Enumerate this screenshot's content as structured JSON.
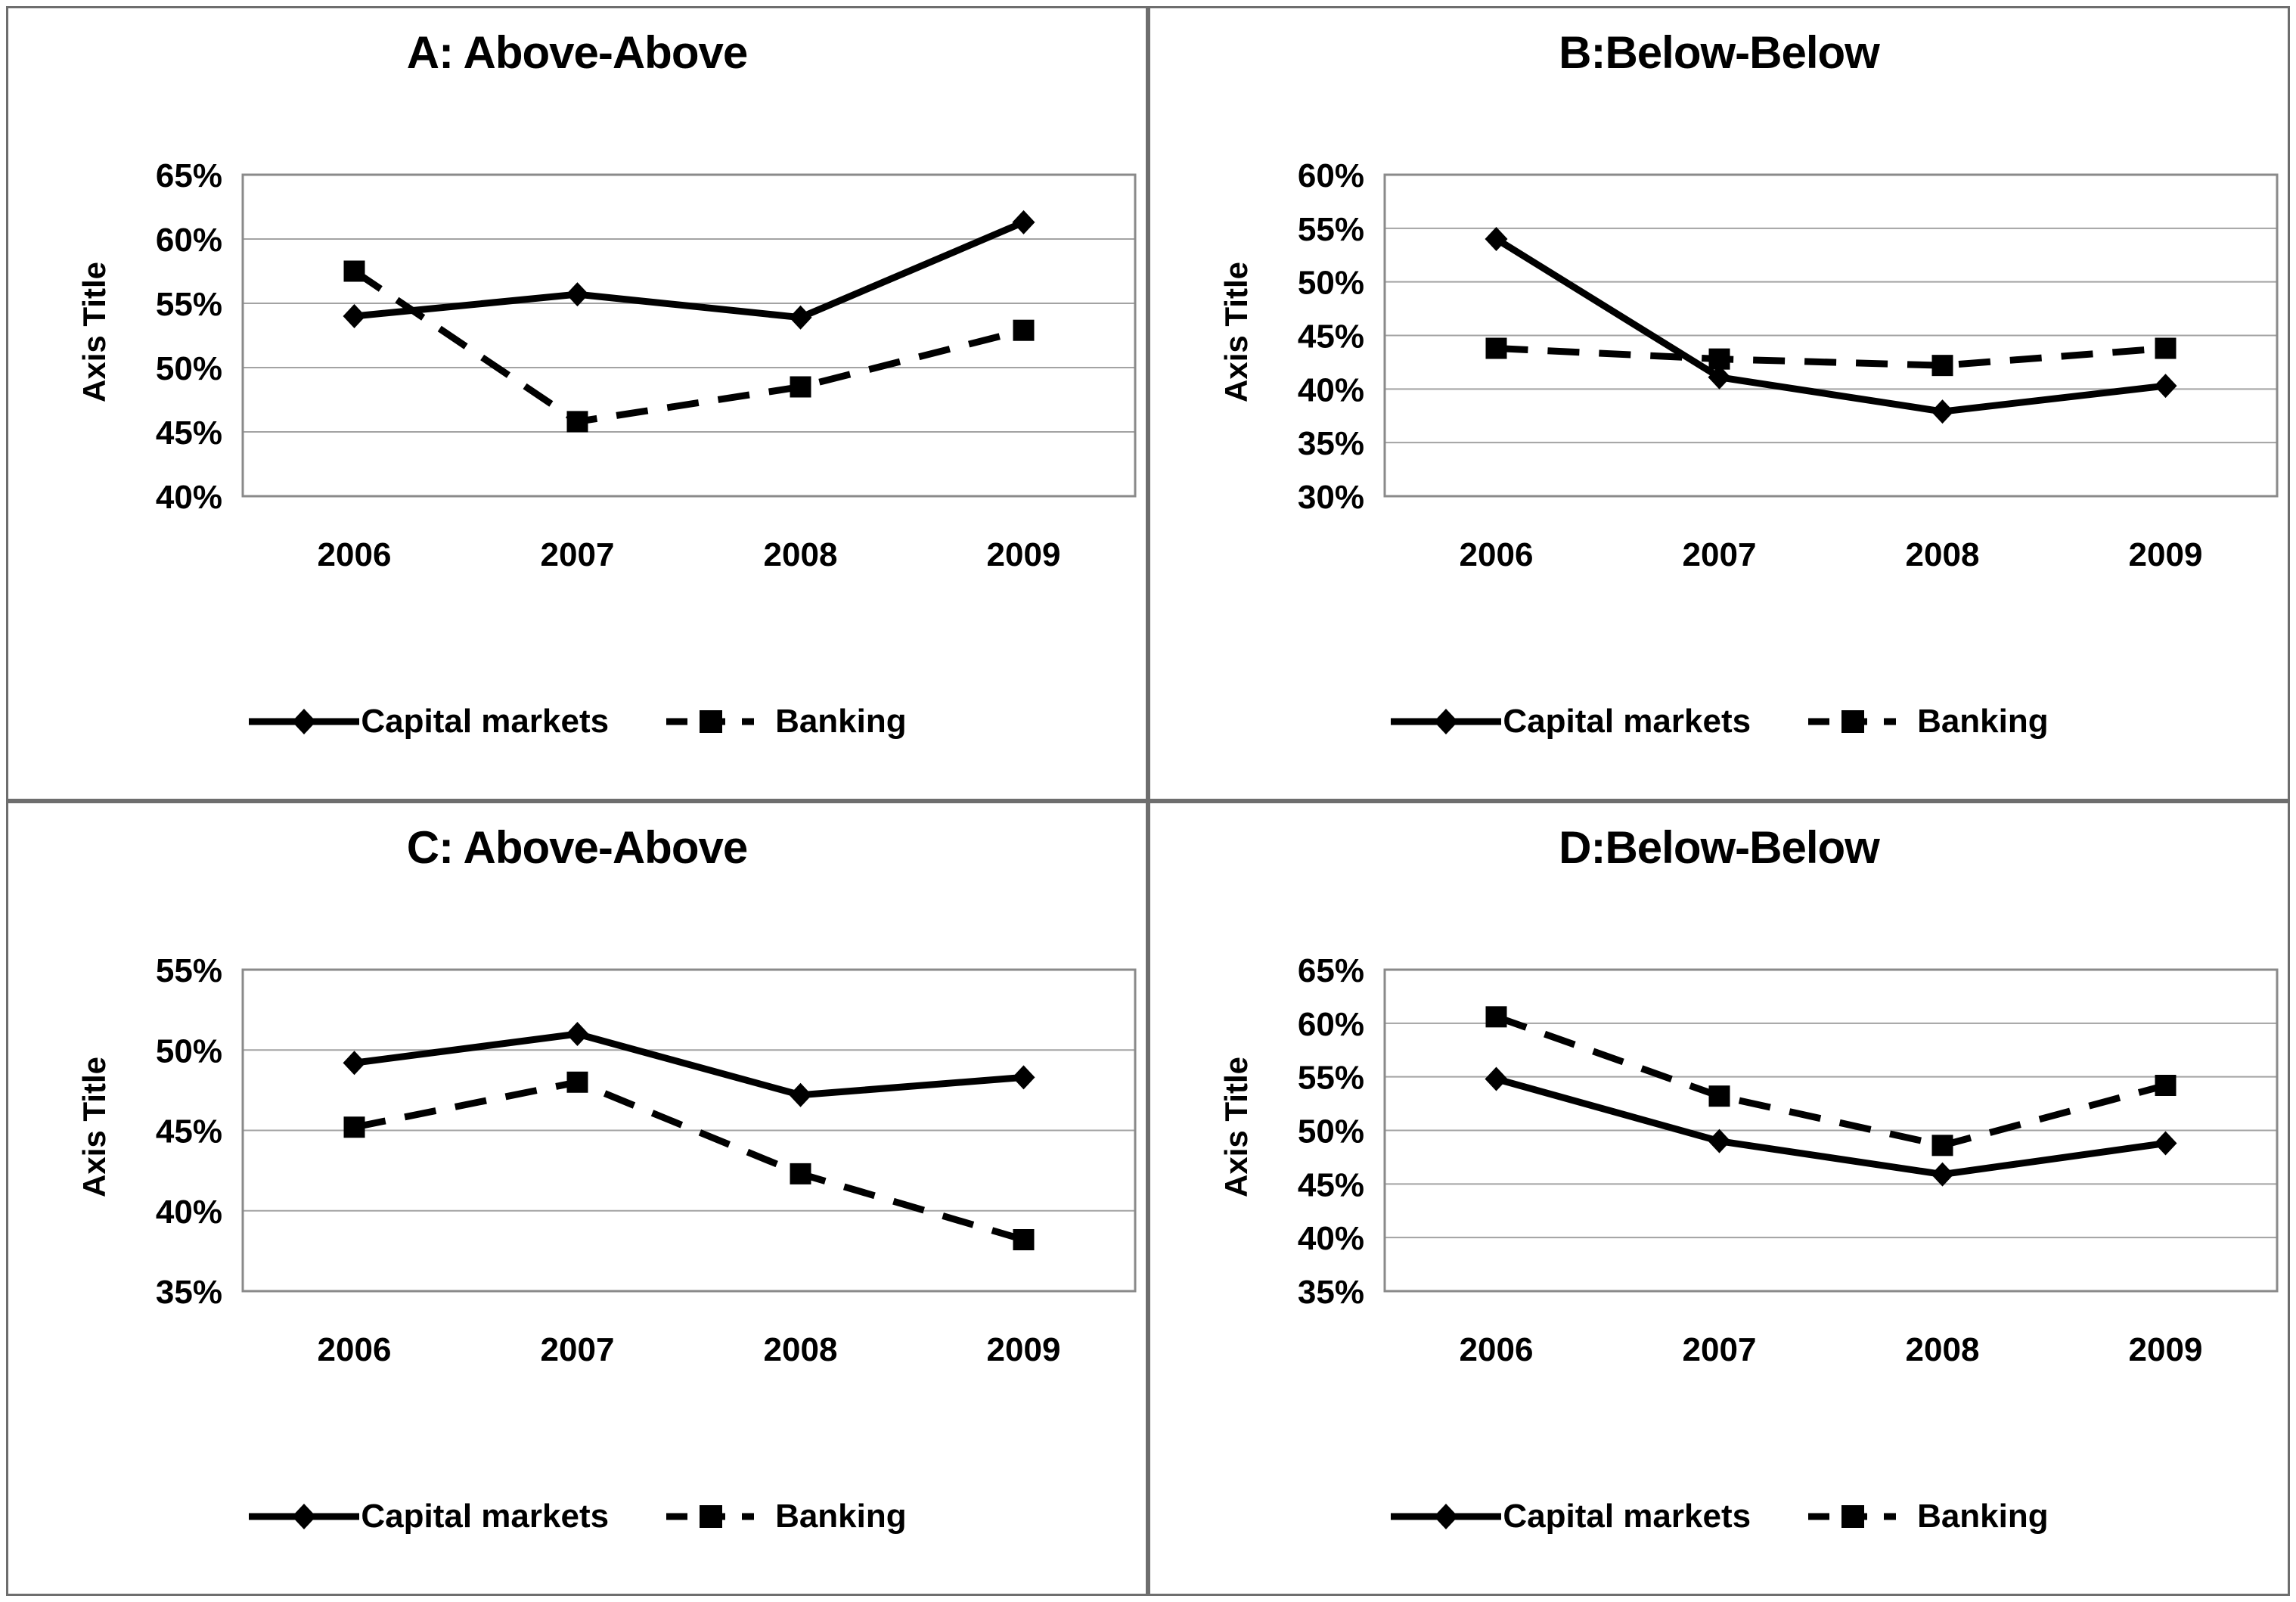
{
  "page": {
    "background": "#ffffff",
    "panel_border_color": "#6e6e6e",
    "series_color": "#000000",
    "gridline_color": "#a3a3a3"
  },
  "chart_data": [
    {
      "type": "line",
      "title": "A: Above-Above",
      "ylabel": "Axis Title",
      "categories": [
        "2006",
        "2007",
        "2008",
        "2009"
      ],
      "series": [
        {
          "name": "Capital markets",
          "style": "solid",
          "marker": "diamond",
          "values": [
            54.0,
            55.7,
            53.9,
            61.3
          ]
        },
        {
          "name": "Banking",
          "style": "dashed",
          "marker": "square",
          "values": [
            57.5,
            45.8,
            48.5,
            52.9
          ]
        }
      ],
      "ylim": [
        40,
        65
      ],
      "ytick_step": 5,
      "ytick_format": "percent",
      "grid": true,
      "legend_position": "bottom"
    },
    {
      "type": "line",
      "title": "B:Below-Below",
      "ylabel": "Axis Title",
      "categories": [
        "2006",
        "2007",
        "2008",
        "2009"
      ],
      "series": [
        {
          "name": "Capital markets",
          "style": "solid",
          "marker": "diamond",
          "values": [
            54.0,
            41.1,
            37.9,
            40.3
          ]
        },
        {
          "name": "Banking",
          "style": "dashed",
          "marker": "square",
          "values": [
            43.8,
            42.8,
            42.2,
            43.8
          ]
        }
      ],
      "ylim": [
        30,
        60
      ],
      "ytick_step": 5,
      "ytick_format": "percent",
      "grid": true,
      "legend_position": "bottom"
    },
    {
      "type": "line",
      "title": "C: Above-Above",
      "ylabel": "Axis Title",
      "categories": [
        "2006",
        "2007",
        "2008",
        "2009"
      ],
      "series": [
        {
          "name": "Capital markets",
          "style": "solid",
          "marker": "diamond",
          "values": [
            49.2,
            51.0,
            47.2,
            48.3
          ]
        },
        {
          "name": "Banking",
          "style": "dashed",
          "marker": "square",
          "values": [
            45.2,
            48.0,
            42.3,
            38.2
          ]
        }
      ],
      "ylim": [
        35,
        55
      ],
      "ytick_step": 5,
      "ytick_format": "percent",
      "grid": true,
      "legend_position": "bottom"
    },
    {
      "type": "line",
      "title": "D:Below-Below",
      "ylabel": "Axis Title",
      "categories": [
        "2006",
        "2007",
        "2008",
        "2009"
      ],
      "series": [
        {
          "name": "Capital markets",
          "style": "solid",
          "marker": "diamond",
          "values": [
            54.8,
            49.0,
            45.9,
            48.8
          ]
        },
        {
          "name": "Banking",
          "style": "dashed",
          "marker": "square",
          "values": [
            60.6,
            53.2,
            48.6,
            54.2
          ]
        }
      ],
      "ylim": [
        35,
        65
      ],
      "ytick_step": 5,
      "ytick_format": "percent",
      "grid": true,
      "legend_position": "bottom"
    }
  ]
}
